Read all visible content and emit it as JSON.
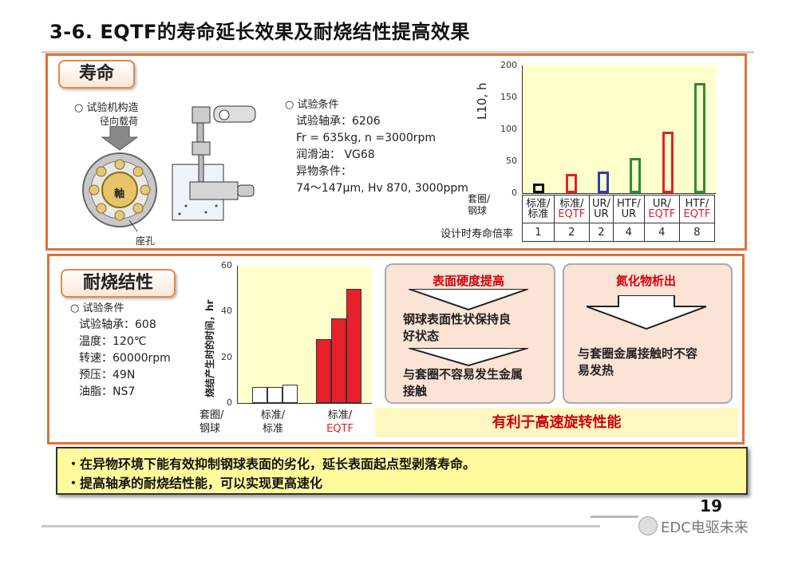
{
  "title": "3-6. EQTF的寿命延长效果及耐烧结性提高效果",
  "life": {
    "label": "寿命",
    "struct_title": "○ 试验机构造",
    "radial_load": "径向载荷",
    "shaft": "軸",
    "housing": "座孔",
    "conditions": [
      "○ 试验条件",
      "试验轴承：6206",
      "Fr = 635kg, n =3000rpm",
      "润滑油： VG68",
      "异物条件：",
      "74～147μm, Hv 870, 3000ppm"
    ],
    "chart_data": {
      "type": "bar",
      "ylabel": "L10, h",
      "ylim": [
        0,
        200
      ],
      "yticks": [
        "0",
        "50",
        "100",
        "150",
        "200"
      ],
      "row_labels": [
        "套圈/",
        "钢球"
      ],
      "factor_label": "设计时寿命倍率",
      "categories": [
        {
          "top": "标准/",
          "bottom": "标准",
          "factor": "1",
          "value": 15,
          "color": "#111111"
        },
        {
          "top": "标准/",
          "bottom": "EQTF",
          "factor": "2",
          "value": 30,
          "color": "#e0202a"
        },
        {
          "top": "UR/",
          "bottom": "UR",
          "factor": "2",
          "value": 34,
          "color": "#2d3fb0"
        },
        {
          "top": "HTF/",
          "bottom": "UR",
          "factor": "4",
          "value": 55,
          "color": "#2e8b3a"
        },
        {
          "top": "UR/",
          "bottom": "EQTF",
          "factor": "4",
          "value": 96,
          "color": "#e0202a"
        },
        {
          "top": "HTF/",
          "bottom": "EQTF",
          "factor": "8",
          "value": 172,
          "color": "#2e8b3a"
        }
      ]
    }
  },
  "seizure": {
    "label": "耐烧结性",
    "conditions": [
      "○ 试验条件",
      "试验轴承：608",
      "温度：120℃",
      "转速：60000rpm",
      "预压：49N",
      "油脂：NS7"
    ],
    "chart_data": {
      "type": "bar",
      "ylabel": "烧结产生时的时间，hr",
      "ylim": [
        0,
        60
      ],
      "yticks": [
        "0",
        "20",
        "40",
        "60"
      ],
      "row_labels": [
        "套圈/",
        "钢球"
      ],
      "groups": [
        {
          "top": "标准/",
          "bottom": "标准",
          "values": [
            7,
            7,
            8
          ],
          "color": "#ffffff"
        },
        {
          "top": "标准/",
          "bottom": "EQTF",
          "values": [
            28,
            37,
            50
          ],
          "color": "#e8202a"
        }
      ]
    },
    "effect1": {
      "head": "表面硬度提高",
      "line1": "钢球表面性状保持良",
      "line2": "好状态",
      "line3": "与套圈不容易发生金属",
      "line4": "接触"
    },
    "effect2": {
      "head": "氮化物析出",
      "line1": "与套圈金属接触时不容",
      "line2": "易发热"
    },
    "benefit": "有利于高速旋转性能"
  },
  "summary": [
    "・在异物环境下能有效抑制钢球表面的劣化，延长表面起点型剥落寿命。",
    "・提高轴承的耐烧结性能，可以实现更高速化"
  ],
  "page_number": "19",
  "watermark": "EDC电驱未来"
}
